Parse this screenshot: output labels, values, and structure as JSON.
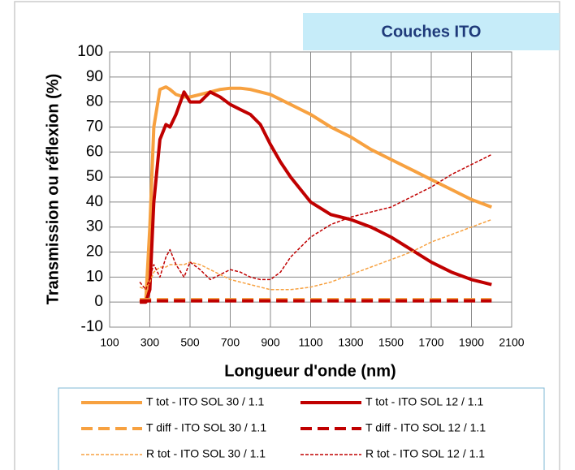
{
  "chart_data": {
    "type": "line",
    "title": "Couches ITO",
    "xlabel": "Longueur d'onde (nm)",
    "ylabel": "Transmission ou  réflexion (%)",
    "x": [
      250,
      280,
      300,
      320,
      350,
      380,
      400,
      430,
      470,
      500,
      550,
      600,
      650,
      700,
      750,
      800,
      850,
      900,
      950,
      1000,
      1100,
      1200,
      1300,
      1400,
      1500,
      1600,
      1700,
      1800,
      1900,
      2000
    ],
    "xlim": [
      100,
      2100
    ],
    "xticks": [
      100,
      300,
      500,
      700,
      900,
      1100,
      1300,
      1500,
      1700,
      1900,
      2100
    ],
    "ylim": [
      -10,
      100
    ],
    "yticks": [
      -10,
      0,
      10,
      20,
      30,
      40,
      50,
      60,
      70,
      80,
      90,
      100
    ],
    "grid": true,
    "series": [
      {
        "name": "T tot - ITO SOL 30 / 1.1",
        "color": "#f7a140",
        "line_style": "solid",
        "width": 4,
        "values": [
          0,
          1,
          30,
          70,
          85,
          86,
          85,
          83,
          82,
          82,
          83,
          84,
          85,
          85.5,
          85.5,
          85,
          84,
          83,
          81,
          79,
          75,
          70,
          66,
          61,
          57,
          53,
          49,
          45,
          41,
          38
        ]
      },
      {
        "name": "T tot - ITO SOL 12 / 1.1",
        "color": "#c00000",
        "line_style": "solid",
        "width": 4,
        "values": [
          0,
          0,
          5,
          40,
          65,
          71,
          70,
          75,
          84,
          80,
          80,
          84,
          82,
          79,
          77,
          75,
          71,
          63,
          56,
          50,
          40,
          35,
          33,
          30,
          26,
          21,
          16,
          12,
          9,
          7
        ]
      },
      {
        "name": "T diff - ITO SOL 30 / 1.1",
        "color": "#f7a140",
        "line_style": "dashed",
        "width": 4,
        "values": [
          1,
          1,
          1,
          1,
          1,
          1,
          1,
          1,
          1,
          1,
          1,
          1,
          1,
          1,
          1,
          1,
          1,
          1,
          1,
          1,
          1,
          1,
          1,
          1,
          1,
          1,
          1,
          1,
          1,
          1
        ]
      },
      {
        "name": "T diff - ITO SOL 12 / 1.1",
        "color": "#c00000",
        "line_style": "dashed",
        "width": 4,
        "values": [
          0.5,
          0.5,
          0.5,
          0.5,
          0.5,
          0.5,
          0.5,
          0.5,
          0.5,
          0.5,
          0.5,
          0.5,
          0.5,
          0.5,
          0.5,
          0.5,
          0.5,
          0.5,
          0.5,
          0.5,
          0.5,
          0.5,
          0.5,
          0.5,
          0.5,
          0.5,
          0.5,
          0.5,
          0.5,
          0.5
        ]
      },
      {
        "name": "R tot - ITO SOL 30 / 1.1",
        "color": "#f7a140",
        "line_style": "dotted",
        "width": 1.5,
        "values": [
          6,
          5,
          8,
          12,
          14,
          14,
          15,
          15,
          15,
          16,
          15,
          13,
          11,
          9,
          8,
          7,
          6,
          5,
          5,
          5,
          6,
          8,
          11,
          14,
          17,
          20,
          24,
          27,
          30,
          33
        ]
      },
      {
        "name": "R tot - ITO SOL 12 / 1.1",
        "color": "#c00000",
        "line_style": "dotted",
        "width": 1.5,
        "values": [
          8,
          5,
          10,
          15,
          10,
          18,
          21,
          15,
          10,
          16,
          13,
          9,
          11,
          13,
          12,
          10,
          9,
          9,
          12,
          18,
          26,
          31,
          34,
          36,
          38,
          42,
          46,
          51,
          55,
          59
        ]
      }
    ]
  }
}
